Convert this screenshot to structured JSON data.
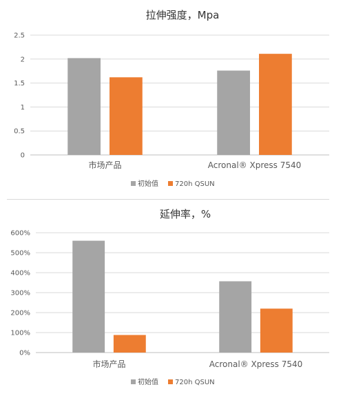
{
  "chart_data": [
    {
      "type": "bar",
      "title": "拉伸强度，Mpa",
      "categories": [
        "市场产品",
        "Acronal® Xpress 7540"
      ],
      "series": [
        {
          "name": "初始值",
          "values": [
            2.02,
            1.76
          ],
          "color": "#a5a5a5"
        },
        {
          "name": "720h QSUN",
          "values": [
            1.62,
            2.11
          ],
          "color": "#ed7d31"
        }
      ],
      "ylim": [
        0,
        2.5
      ],
      "yticks": [
        0,
        0.5,
        1,
        1.5,
        2,
        2.5
      ],
      "ytick_labels": [
        "0",
        "0.5",
        "1",
        "1.5",
        "2",
        "2.5"
      ],
      "grid": true,
      "legend": "bottom"
    },
    {
      "type": "bar",
      "title": "延伸率，%",
      "categories": [
        "市场产品",
        "Acronal® Xpress 7540"
      ],
      "series": [
        {
          "name": "初始值",
          "values": [
            560,
            357
          ],
          "color": "#a5a5a5"
        },
        {
          "name": "720h QSUN",
          "values": [
            88,
            220
          ],
          "color": "#ed7d31"
        }
      ],
      "ylim": [
        0,
        600
      ],
      "yticks": [
        0,
        100,
        200,
        300,
        400,
        500,
        600
      ],
      "ytick_labels": [
        "0%",
        "100%",
        "200%",
        "300%",
        "400%",
        "500%",
        "600%"
      ],
      "grid": true,
      "legend": "bottom"
    }
  ]
}
